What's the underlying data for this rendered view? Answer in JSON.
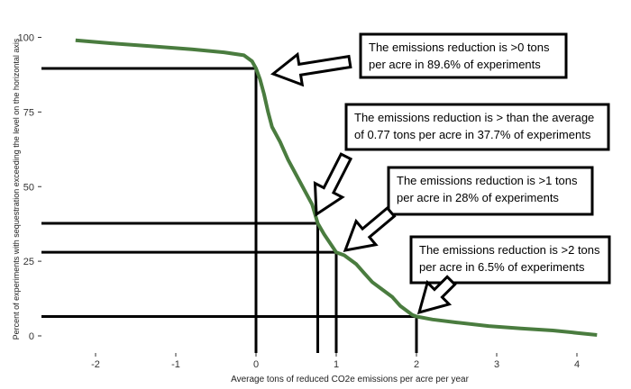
{
  "chart_data": {
    "type": "line",
    "title": "",
    "xlabel": "Average tons of reduced CO2e emissions per acre per year",
    "ylabel": "Percent of experiments with sequestration exceeding the level on the horizontal axis",
    "xlim": [
      -2.6,
      4.5
    ],
    "ylim": [
      -3,
      103
    ],
    "x_ticks": [
      -2,
      -1,
      0,
      1,
      2,
      3,
      4
    ],
    "y_ticks": [
      0,
      25,
      50,
      75,
      100
    ],
    "grid": false,
    "series": [
      {
        "color": "#4a7c3f",
        "x": [
          -2.25,
          -1.8,
          -1.3,
          -0.8,
          -0.4,
          -0.15,
          -0.05,
          0.0,
          0.05,
          0.1,
          0.15,
          0.2,
          0.3,
          0.4,
          0.5,
          0.6,
          0.7,
          0.77,
          0.85,
          0.95,
          1.0,
          1.1,
          1.25,
          1.35,
          1.45,
          1.55,
          1.7,
          1.8,
          1.9,
          1.95,
          2.0,
          2.2,
          2.5,
          2.9,
          3.3,
          3.7,
          4.0,
          4.25
        ],
        "y": [
          99,
          98,
          97,
          96,
          95,
          94,
          92,
          89.6,
          86,
          81,
          75,
          70,
          65,
          59,
          54,
          49,
          44,
          37.7,
          34,
          30,
          28,
          27,
          24,
          21,
          18,
          16,
          13,
          10,
          8,
          7,
          6.5,
          5.5,
          4.5,
          3.3,
          2.5,
          1.8,
          1.0,
          0.3
        ]
      }
    ],
    "reference_lines": [
      {
        "x": 0,
        "y": 89.6
      },
      {
        "x": 0.77,
        "y": 37.7
      },
      {
        "x": 1,
        "y": 28
      },
      {
        "x": 2,
        "y": 6.5
      }
    ],
    "annotations": [
      {
        "line1": "The emissions reduction is >0 tons",
        "line2": "per acre in 89.6% of experiments"
      },
      {
        "line1": "The emissions reduction is > than the average",
        "line2": "of 0.77 tons per acre in 37.7% of experiments"
      },
      {
        "line1": "The emissions reduction is >1 tons",
        "line2": "per acre in 28% of experiments"
      },
      {
        "line1": "The emissions reduction is >2 tons",
        "line2": "per acre in 6.5% of experiments"
      }
    ]
  }
}
